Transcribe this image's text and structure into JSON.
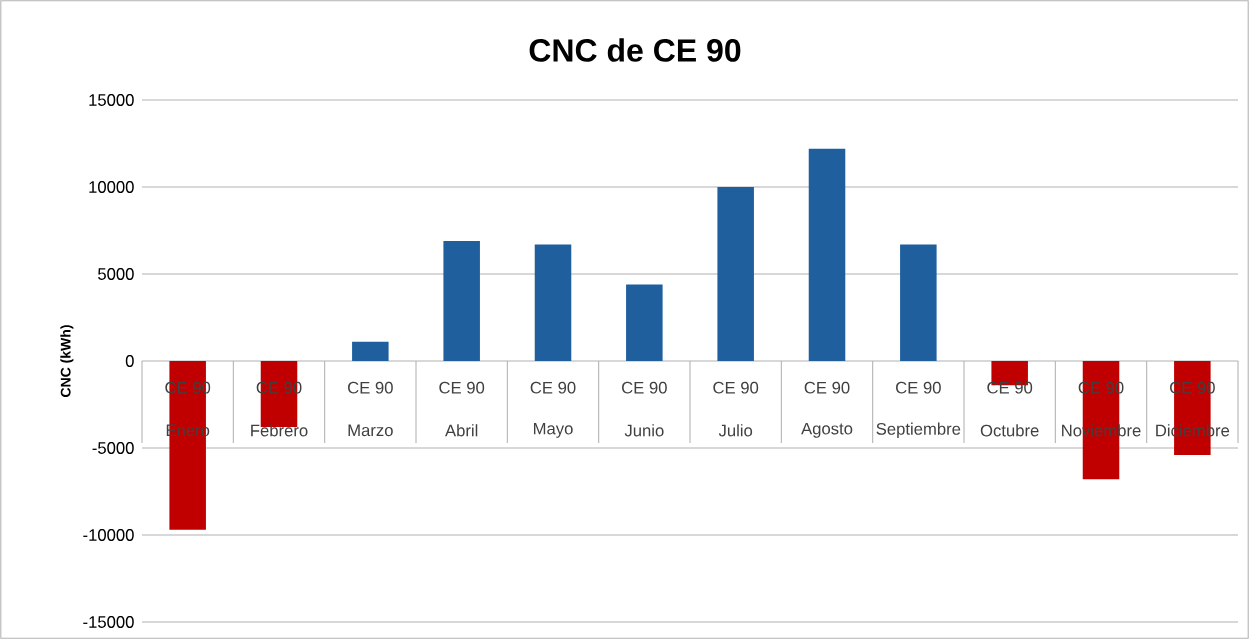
{
  "chart_data": {
    "type": "bar",
    "title": "CNC de CE 90",
    "ylabel": "CNC (kWh)",
    "categories": [
      "Enero",
      "Febrero",
      "Marzo",
      "Abril",
      "Mayo",
      "Junio",
      "Julio",
      "Agosto",
      "Septiembre",
      "Octubre",
      "Noviembre",
      "Diciembre"
    ],
    "series": [
      {
        "name": "CE 90",
        "values": [
          -9700,
          -3800,
          1100,
          6900,
          6700,
          4400,
          10000,
          12200,
          6700,
          -1400,
          -6800,
          -5400
        ],
        "colors": [
          "#c00000",
          "#c00000",
          "#1f5f9e",
          "#1f5f9e",
          "#1f5f9e",
          "#1f5f9e",
          "#1f5f9e",
          "#1f5f9e",
          "#1f5f9e",
          "#c00000",
          "#c00000",
          "#c00000"
        ]
      }
    ],
    "ylim": [
      -15000,
      15000
    ],
    "yticks": [
      -15000,
      -10000,
      -5000,
      0,
      5000,
      10000,
      15000
    ],
    "grid": "y"
  }
}
